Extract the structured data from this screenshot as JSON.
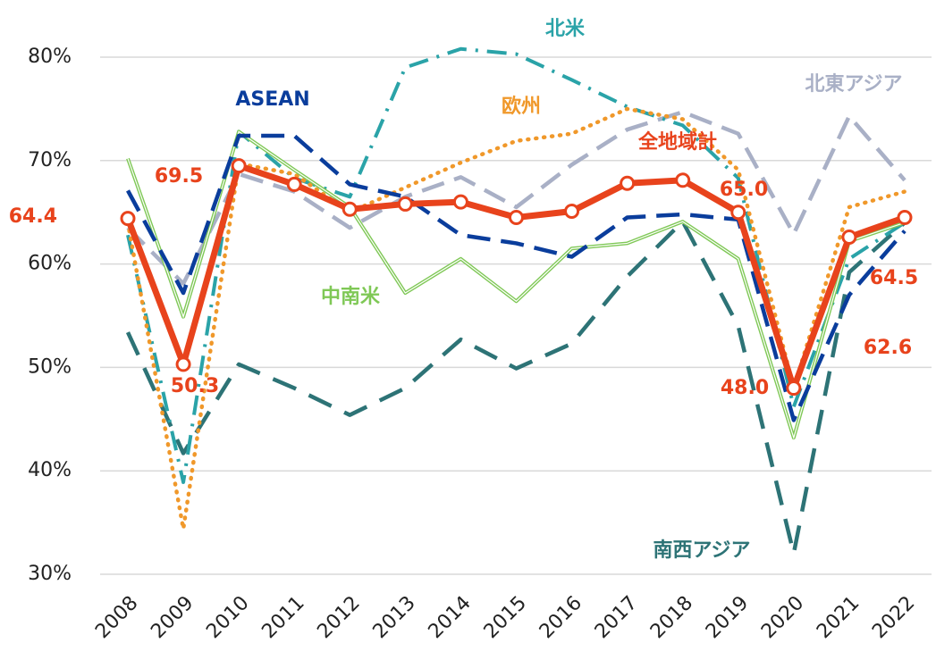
{
  "chart_data": {
    "type": "line",
    "categories": [
      "2008",
      "2009",
      "2010",
      "2011",
      "2012",
      "2013",
      "2014",
      "2015",
      "2016",
      "2017",
      "2018",
      "2019",
      "2020",
      "2021",
      "2022"
    ],
    "ylim": [
      30,
      80
    ],
    "yticks": [
      {
        "value": 30,
        "label": "30%"
      },
      {
        "value": 40,
        "label": "40%"
      },
      {
        "value": 50,
        "label": "50%"
      },
      {
        "value": 60,
        "label": "60%"
      },
      {
        "value": 70,
        "label": "70%"
      },
      {
        "value": 80,
        "label": "80%"
      }
    ],
    "grid": true,
    "series": [
      {
        "name": "南西アジア",
        "color": "#2d7376",
        "style": "longdash",
        "values": [
          53.4,
          41.7,
          50.3,
          48.0,
          45.4,
          48.0,
          52.7,
          49.9,
          52.3,
          58.8,
          64.1,
          54.0,
          32.0,
          59.2,
          64.0
        ]
      },
      {
        "name": "北東アジア",
        "color": "#a9b0c6",
        "style": "dashed",
        "values": [
          63.5,
          58.1,
          68.7,
          67.0,
          63.5,
          66.5,
          68.4,
          65.5,
          69.6,
          73.0,
          74.7,
          72.6,
          62.9,
          74.3,
          68.1
        ]
      },
      {
        "name": "北米",
        "color": "#2aa3a8",
        "style": "dashdot",
        "values": [
          62.8,
          38.9,
          72.8,
          68.3,
          66.5,
          79.0,
          80.8,
          80.3,
          77.8,
          75.2,
          73.4,
          68.3,
          46.2,
          60.5,
          64.0
        ]
      },
      {
        "name": "欧州",
        "color": "#f0982a",
        "style": "dotted",
        "values": [
          64.0,
          34.4,
          69.7,
          68.7,
          65.0,
          67.4,
          69.8,
          71.9,
          72.6,
          75.0,
          74.0,
          69.1,
          48.0,
          65.5,
          67.0
        ]
      },
      {
        "name": "中南米",
        "color": "#7fc856",
        "style": "double",
        "values": [
          70.2,
          54.9,
          72.8,
          69.1,
          65.5,
          57.2,
          60.5,
          56.4,
          61.5,
          62.0,
          64.1,
          60.5,
          43.2,
          62.2,
          64.0
        ]
      },
      {
        "name": "ASEAN",
        "color": "#0a3d9c",
        "style": "dashed",
        "values": [
          67.1,
          57.2,
          72.4,
          72.4,
          67.7,
          66.5,
          62.8,
          62.0,
          60.7,
          64.5,
          64.8,
          64.3,
          44.9,
          57.0,
          63.2
        ]
      },
      {
        "name": "全地域計",
        "color": "#e8431c",
        "style": "thick",
        "values": [
          64.4,
          50.3,
          69.5,
          67.7,
          65.3,
          65.8,
          66.0,
          64.5,
          65.1,
          67.8,
          68.1,
          65.0,
          48.0,
          62.6,
          64.5
        ],
        "value_labels": [
          "64.4",
          "50.3",
          "69.5",
          null,
          null,
          null,
          null,
          null,
          null,
          null,
          null,
          "65.0",
          "48.0",
          "62.6",
          "64.5"
        ]
      }
    ]
  }
}
